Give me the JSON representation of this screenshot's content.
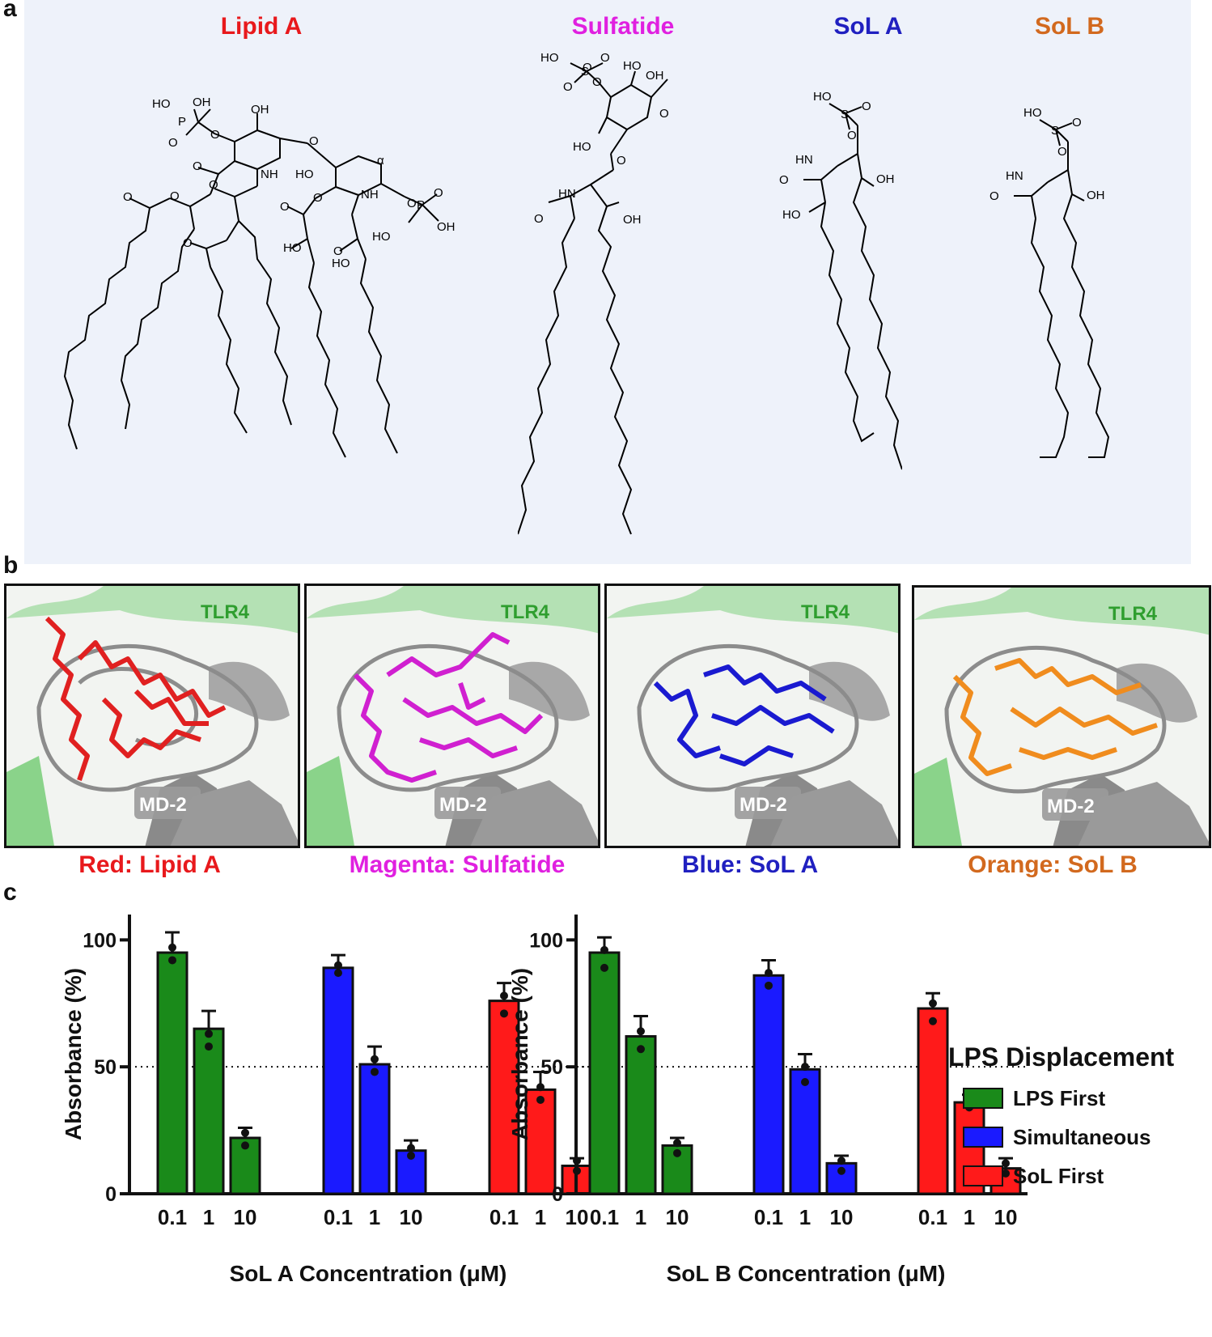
{
  "panels": {
    "a": "a",
    "b": "b",
    "c": "c"
  },
  "structures": [
    {
      "name": "Lipid A",
      "color": "#e8191c"
    },
    {
      "name": "Sulfatide",
      "color": "#e020e0"
    },
    {
      "name": "SoL A",
      "color": "#2020c0"
    },
    {
      "name": "SoL B",
      "color": "#d2691e"
    }
  ],
  "atom_labels": {
    "lipid_a": [
      "HO",
      "OH",
      "P",
      "O",
      "O",
      "OH",
      "O",
      "O",
      "O",
      "NH",
      "O",
      "O",
      "HO",
      "O",
      "O",
      "NH",
      "O",
      "O",
      "O",
      "O",
      "P",
      "O",
      "HO",
      "OH",
      "HO",
      "HO",
      "O",
      "O"
    ],
    "sulfatide": [
      "HO",
      "S",
      "O",
      "O",
      "O",
      "HO",
      "OH",
      "O",
      "HO",
      "O",
      "HN",
      "O",
      "OH"
    ],
    "sol_a": [
      "HO",
      "S",
      "O",
      "O",
      "HN",
      "O",
      "OH",
      "HO"
    ],
    "sol_b": [
      "HO",
      "S",
      "O",
      "O",
      "HN",
      "O",
      "OH"
    ]
  },
  "views": [
    {
      "ligand": "Lipid A",
      "ligand_color": "#e02020",
      "tlr4": "TLR4",
      "md2": "MD-2",
      "caption": "Red: Lipid A",
      "caption_color": "#e8191c"
    },
    {
      "ligand": "Sulfatide",
      "ligand_color": "#d020d0",
      "tlr4": "TLR4",
      "md2": "MD-2",
      "caption": "Magenta: Sulfatide",
      "caption_color": "#e020e0"
    },
    {
      "ligand": "SoL A",
      "ligand_color": "#1a1ad0",
      "tlr4": "TLR4",
      "md2": "MD-2",
      "caption": "Blue: SoL A",
      "caption_color": "#2020c0"
    },
    {
      "ligand": "SoL B",
      "ligand_color": "#f08c1e",
      "tlr4": "TLR4",
      "md2": "MD-2",
      "caption": "Orange: SoL B",
      "caption_color": "#d2691e"
    }
  ],
  "legend": {
    "title": "LPS Displacement",
    "items": [
      {
        "label": "LPS First",
        "color": "#1a8a1a"
      },
      {
        "label": "Simultaneous",
        "color": "#1a1aff"
      },
      {
        "label": "SoL First",
        "color": "#ff1a1a"
      }
    ]
  },
  "chart_data": [
    {
      "type": "bar",
      "xlabel": "SoL A Concentration (μM)",
      "ylabel": "Absorbance (%)",
      "ylim": [
        0,
        110
      ],
      "yticks": [
        0,
        50,
        100
      ],
      "reference_line": 50,
      "groups": [
        {
          "name": "LPS First",
          "color": "#1a8a1a",
          "categories": [
            "0.1",
            "1",
            "10"
          ],
          "values": [
            95,
            65,
            22
          ],
          "errors": [
            8,
            7,
            4
          ],
          "points": [
            [
              97,
              92
            ],
            [
              63,
              58
            ],
            [
              24,
              19
            ]
          ]
        },
        {
          "name": "Simultaneous",
          "color": "#1a1aff",
          "categories": [
            "0.1",
            "1",
            "10"
          ],
          "values": [
            89,
            51,
            17
          ],
          "errors": [
            5,
            7,
            4
          ],
          "points": [
            [
              90,
              87
            ],
            [
              53,
              48
            ],
            [
              18,
              15
            ]
          ]
        },
        {
          "name": "SoL First",
          "color": "#ff1a1a",
          "categories": [
            "0.1",
            "1",
            "10"
          ],
          "values": [
            76,
            41,
            11
          ],
          "errors": [
            7,
            7,
            3
          ],
          "points": [
            [
              78,
              71
            ],
            [
              42,
              37
            ],
            [
              13,
              9
            ]
          ]
        }
      ]
    },
    {
      "type": "bar",
      "xlabel": "SoL B Concentration (μM)",
      "ylabel": "Absorbance (%)",
      "ylim": [
        0,
        110
      ],
      "yticks": [
        0,
        50,
        100
      ],
      "reference_line": 50,
      "groups": [
        {
          "name": "LPS First",
          "color": "#1a8a1a",
          "categories": [
            "0.1",
            "1",
            "10"
          ],
          "values": [
            95,
            62,
            19
          ],
          "errors": [
            6,
            8,
            3
          ],
          "points": [
            [
              96,
              89
            ],
            [
              64,
              57
            ],
            [
              20,
              16
            ]
          ]
        },
        {
          "name": "Simultaneous",
          "color": "#1a1aff",
          "categories": [
            "0.1",
            "1",
            "10"
          ],
          "values": [
            86,
            49,
            12
          ],
          "errors": [
            6,
            6,
            3
          ],
          "points": [
            [
              87,
              82
            ],
            [
              50,
              44
            ],
            [
              13,
              9
            ]
          ]
        },
        {
          "name": "SoL First",
          "color": "#ff1a1a",
          "categories": [
            "0.1",
            "1",
            "10"
          ],
          "values": [
            73,
            36,
            10
          ],
          "errors": [
            6,
            3,
            4
          ],
          "points": [
            [
              75,
              68
            ],
            [
              37,
              34
            ],
            [
              12,
              8
            ]
          ]
        }
      ]
    }
  ]
}
